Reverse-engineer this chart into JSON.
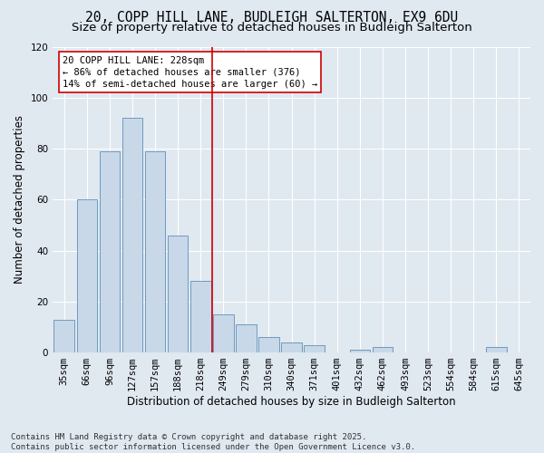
{
  "title_line1": "20, COPP HILL LANE, BUDLEIGH SALTERTON, EX9 6DU",
  "title_line2": "Size of property relative to detached houses in Budleigh Salterton",
  "xlabel": "Distribution of detached houses by size in Budleigh Salterton",
  "ylabel": "Number of detached properties",
  "categories": [
    "35sqm",
    "66sqm",
    "96sqm",
    "127sqm",
    "157sqm",
    "188sqm",
    "218sqm",
    "249sqm",
    "279sqm",
    "310sqm",
    "340sqm",
    "371sqm",
    "401sqm",
    "432sqm",
    "462sqm",
    "493sqm",
    "523sqm",
    "554sqm",
    "584sqm",
    "615sqm",
    "645sqm"
  ],
  "values": [
    13,
    60,
    79,
    92,
    79,
    46,
    28,
    15,
    11,
    6,
    4,
    3,
    0,
    1,
    2,
    0,
    0,
    0,
    0,
    2,
    0
  ],
  "bar_color": "#c8d8e8",
  "bar_edge_color": "#6090b8",
  "vline_x": 6.5,
  "vline_color": "#cc0000",
  "annotation_text": "20 COPP HILL LANE: 228sqm\n← 86% of detached houses are smaller (376)\n14% of semi-detached houses are larger (60) →",
  "annotation_box_color": "#ffffff",
  "annotation_box_edge": "#cc0000",
  "ylim": [
    0,
    120
  ],
  "yticks": [
    0,
    20,
    40,
    60,
    80,
    100,
    120
  ],
  "background_color": "#e0e8f0",
  "footer_text": "Contains HM Land Registry data © Crown copyright and database right 2025.\nContains public sector information licensed under the Open Government Licence v3.0.",
  "title_fontsize": 10.5,
  "subtitle_fontsize": 9.5,
  "axis_label_fontsize": 8.5,
  "tick_fontsize": 7.5,
  "footer_fontsize": 6.5,
  "annot_fontsize": 7.5
}
